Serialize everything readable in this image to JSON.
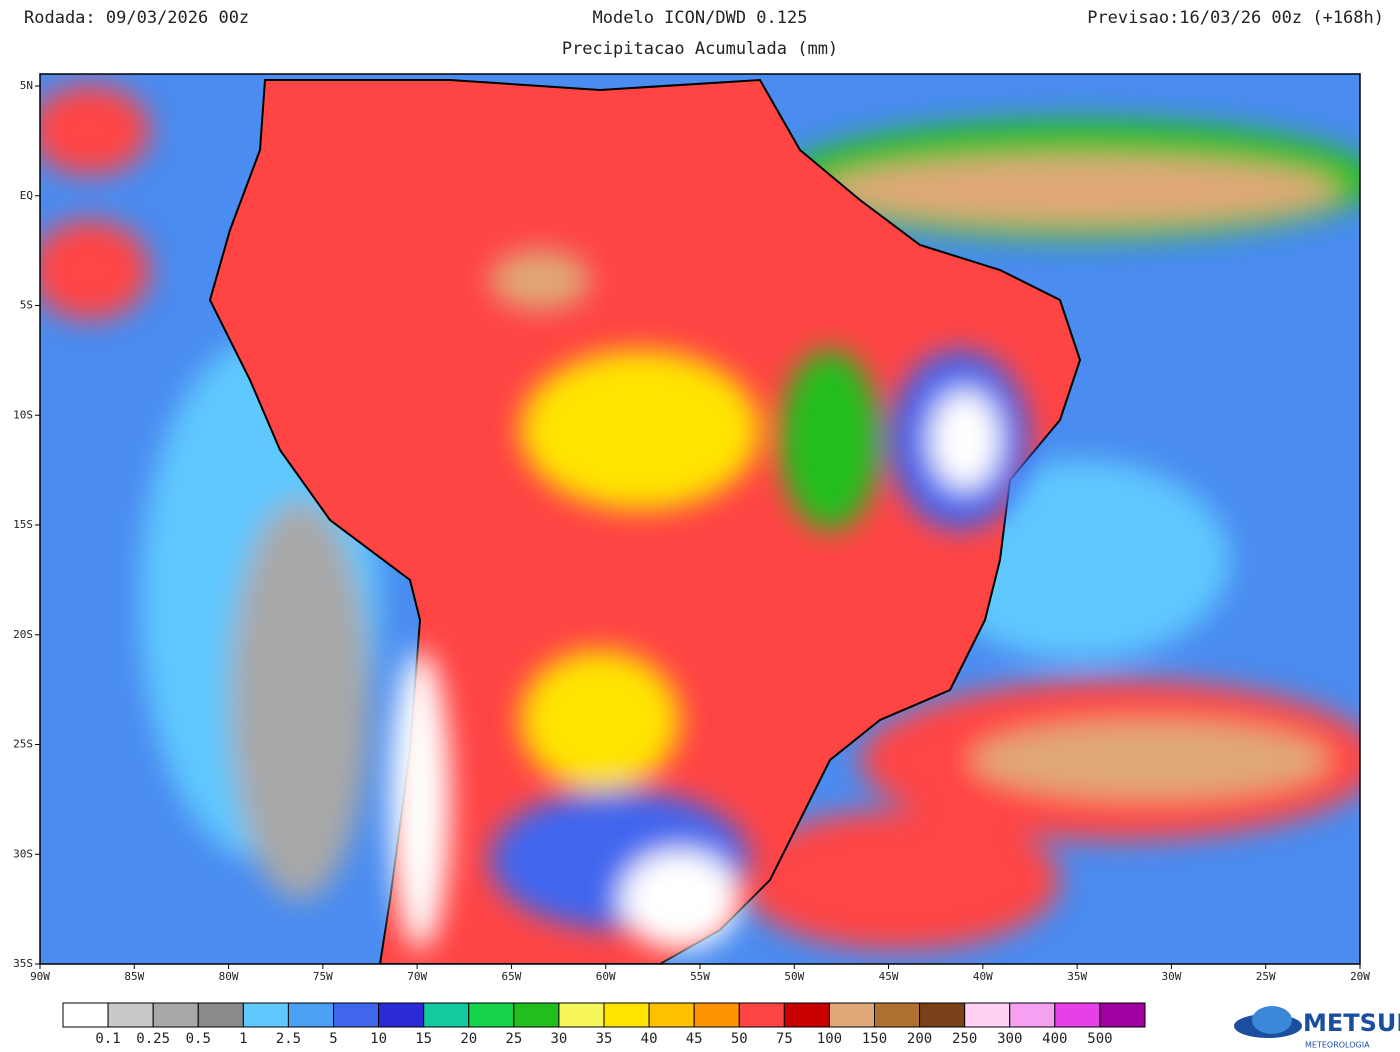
{
  "header": {
    "left": "Rodada: 09/03/2026 00z",
    "title": "Modelo ICON/DWD 0.125",
    "subtitle": "Precipitacao Acumulada (mm)",
    "right": "Previsao:16/03/26 00z (+168h)"
  },
  "map": {
    "lat_labels": [
      "5N",
      "EQ",
      "5S",
      "10S",
      "15S",
      "20S",
      "25S",
      "30S",
      "35S"
    ],
    "lon_labels": [
      "90W",
      "85W",
      "80W",
      "75W",
      "70W",
      "65W",
      "60W",
      "55W",
      "50W",
      "45W",
      "40W",
      "35W",
      "30W",
      "25W",
      "20W"
    ]
  },
  "legend": {
    "labels": [
      "0.1",
      "0.25",
      "0.5",
      "1",
      "2.5",
      "5",
      "10",
      "15",
      "20",
      "25",
      "30",
      "35",
      "40",
      "45",
      "50",
      "75",
      "100",
      "150",
      "200",
      "250",
      "300",
      "400",
      "500"
    ],
    "colors": [
      "#ffffff",
      "#c8c8c8",
      "#a8a8a8",
      "#8a8a8a",
      "#5ec8ff",
      "#4aa0f5",
      "#4066ee",
      "#2a2ad6",
      "#14c8a0",
      "#14d24a",
      "#22be1e",
      "#f6f65a",
      "#ffe400",
      "#ffc000",
      "#ff9400",
      "#ff4444",
      "#c80000",
      "#e0a878",
      "#b07030",
      "#7a4018",
      "#ffd0f4",
      "#f5a0f0",
      "#e840e8",
      "#a000a0"
    ]
  },
  "logo": {
    "name": "METSUL",
    "sub": "METEOROLOGIA"
  }
}
